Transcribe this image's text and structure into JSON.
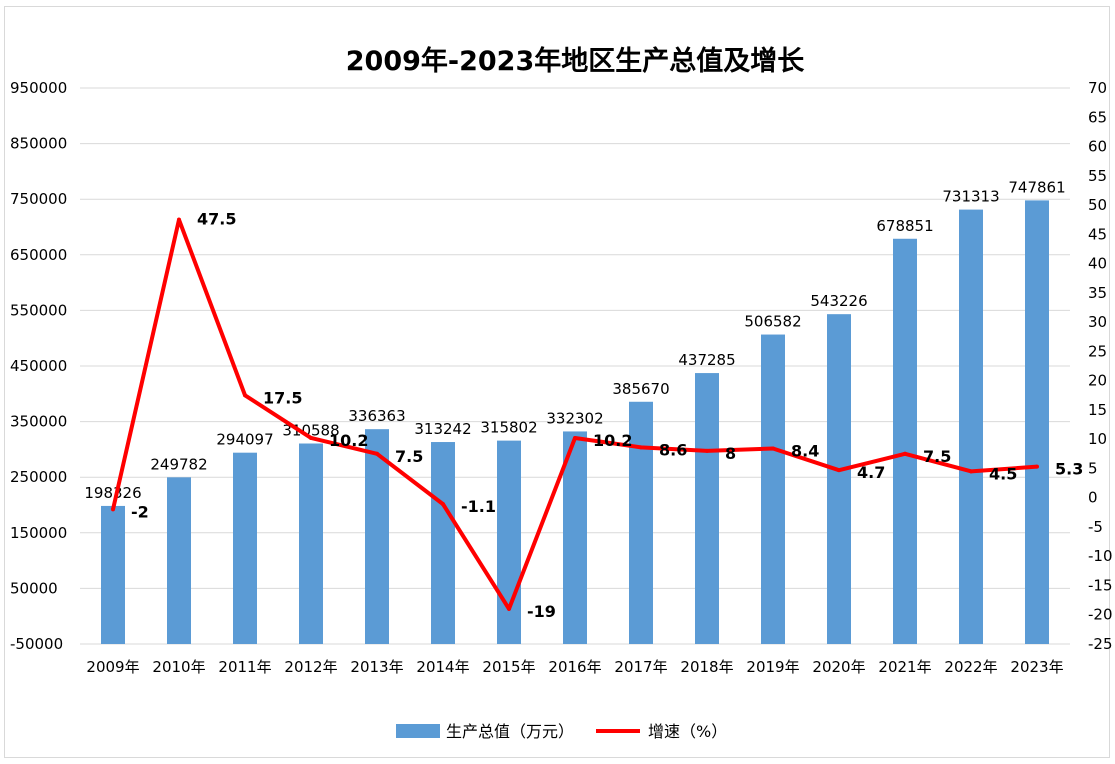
{
  "chart_data": {
    "type": "bar",
    "title": "2009年-2023年地区生产总值及增长",
    "categories": [
      "2009年",
      "2010年",
      "2011年",
      "2012年",
      "2013年",
      "2014年",
      "2015年",
      "2016年",
      "2017年",
      "2018年",
      "2019年",
      "2020年",
      "2021年",
      "2022年",
      "2023年"
    ],
    "series": [
      {
        "name": "生产总值（万元）",
        "type": "bar",
        "axis": "left",
        "color": "#5b9bd5",
        "values": [
          198326,
          249782,
          294097,
          310588,
          336363,
          313242,
          315802,
          332302,
          385670,
          437285,
          506582,
          543226,
          678851,
          731313,
          747861
        ],
        "labels": [
          "198326",
          "249782",
          "294097",
          "310588",
          "336363",
          "313242",
          "315802",
          "332302",
          "385670",
          "437285",
          "506582",
          "543226",
          "678851",
          "731313",
          "747861"
        ]
      },
      {
        "name": "增速（%）",
        "type": "line",
        "axis": "right",
        "color": "#ff0000",
        "values": [
          -2,
          47.5,
          17.5,
          10.2,
          7.5,
          -1.1,
          -19,
          10.2,
          8.6,
          8,
          8.4,
          4.7,
          7.5,
          4.5,
          5.3
        ],
        "labels": [
          "-2",
          "47.5",
          "17.5",
          "10.2",
          "7.5",
          "-1.1",
          "-19",
          "10.2",
          "8.6",
          "8",
          "8.4",
          "4.7",
          "7.5",
          "4.5",
          "5.3"
        ]
      }
    ],
    "y_left": {
      "min": -50000,
      "max": 950000,
      "ticks": [
        "950000",
        "850000",
        "750000",
        "650000",
        "550000",
        "450000",
        "350000",
        "250000",
        "150000",
        "50000",
        "-50000"
      ]
    },
    "y_right": {
      "min": -25,
      "max": 70,
      "ticks": [
        "70",
        "65",
        "60",
        "55",
        "50",
        "45",
        "40",
        "35",
        "30",
        "25",
        "20",
        "15",
        "10",
        "5",
        "0",
        "-5",
        "-10",
        "-15",
        "-20",
        "-25"
      ]
    },
    "grid": true,
    "legend": "bottom"
  }
}
